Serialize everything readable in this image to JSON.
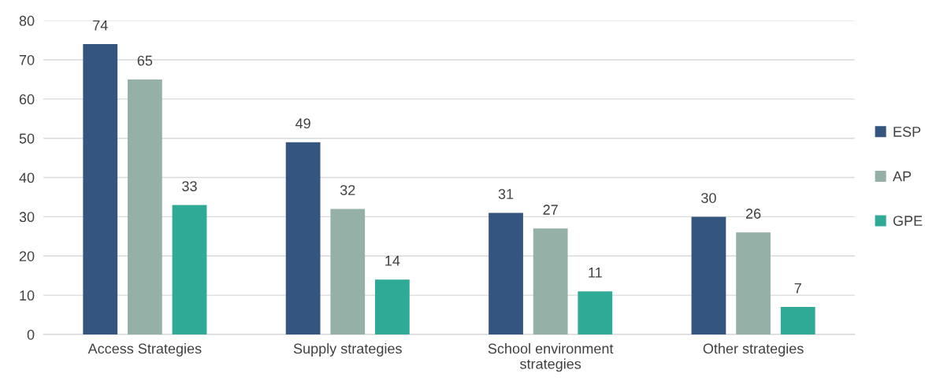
{
  "chart_data": {
    "type": "bar",
    "categories": [
      "Access Strategies",
      "Supply strategies",
      "School environment strategies",
      "Other strategies"
    ],
    "series": [
      {
        "name": "ESP",
        "color": "#34557f",
        "values": [
          74,
          49,
          31,
          30
        ]
      },
      {
        "name": "AP",
        "color": "#95b0a6",
        "values": [
          65,
          32,
          27,
          26
        ]
      },
      {
        "name": "GPE",
        "color": "#2eaa96",
        "values": [
          33,
          14,
          11,
          7
        ]
      }
    ],
    "ylim": [
      0,
      80
    ],
    "yticks": [
      0,
      10,
      20,
      30,
      40,
      50,
      60,
      70,
      80
    ],
    "grid": "y",
    "legend": "right",
    "data_labels": true
  }
}
